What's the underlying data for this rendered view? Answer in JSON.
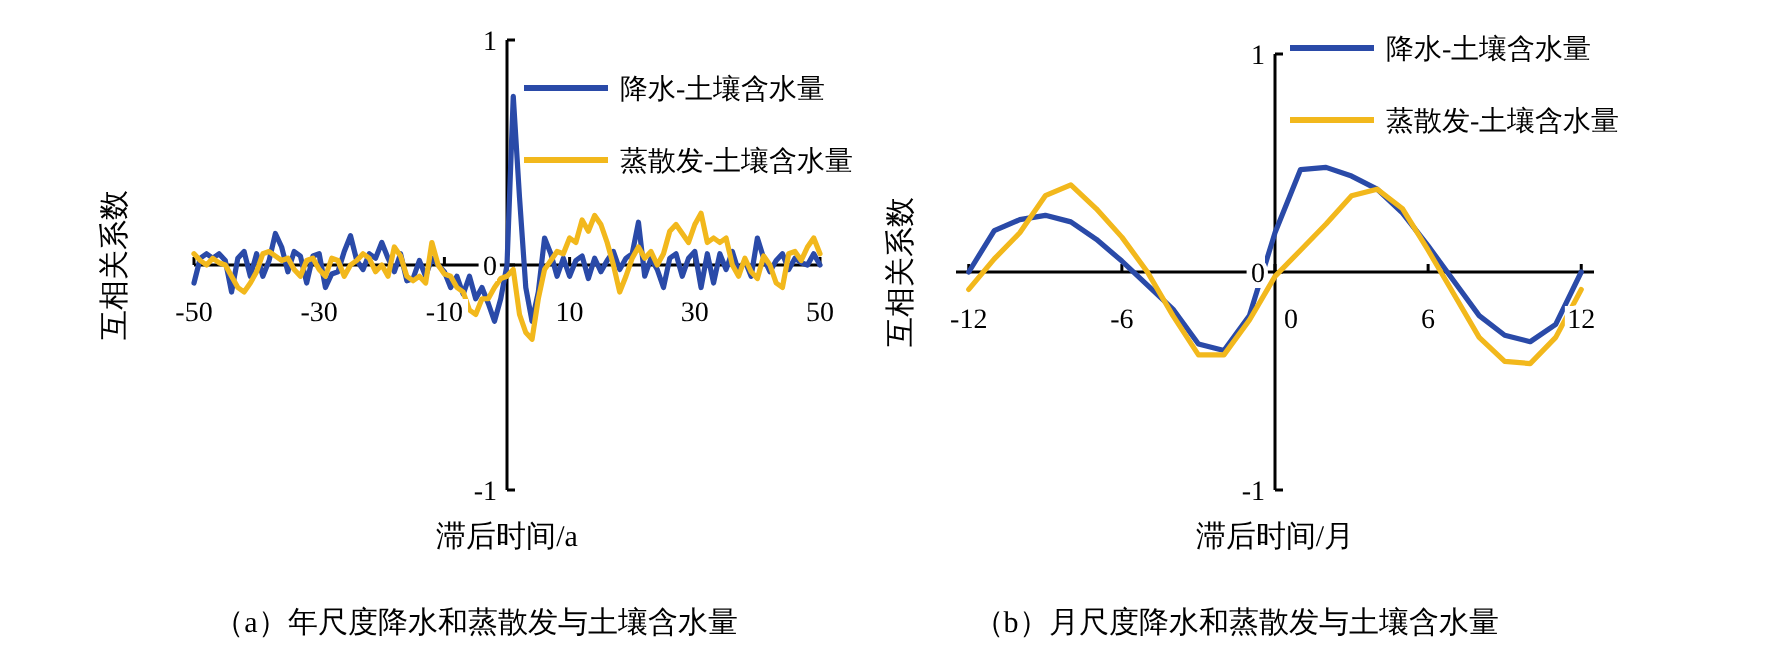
{
  "chart_data": [
    {
      "type": "line",
      "title": "（a）年尺度降水和蒸散发与土壤含水量",
      "xlabel": "滞后时间/a",
      "ylabel": "互相关系数",
      "x": [
        -50,
        -49,
        -48,
        -47,
        -46,
        -45,
        -44,
        -43,
        -42,
        -41,
        -40,
        -39,
        -38,
        -37,
        -36,
        -35,
        -34,
        -33,
        -32,
        -31,
        -30,
        -29,
        -28,
        -27,
        -26,
        -25,
        -24,
        -23,
        -22,
        -21,
        -20,
        -19,
        -18,
        -17,
        -16,
        -15,
        -14,
        -13,
        -12,
        -11,
        -10,
        -9,
        -8,
        -7,
        -6,
        -5,
        -4,
        -3,
        -2,
        -1,
        0,
        1,
        2,
        3,
        4,
        5,
        6,
        7,
        8,
        9,
        10,
        11,
        12,
        13,
        14,
        15,
        16,
        17,
        18,
        19,
        20,
        21,
        22,
        23,
        24,
        25,
        26,
        27,
        28,
        29,
        30,
        31,
        32,
        33,
        34,
        35,
        36,
        37,
        38,
        39,
        40,
        41,
        42,
        43,
        44,
        45,
        46,
        47,
        48,
        49,
        50
      ],
      "xlim": [
        -50,
        50
      ],
      "ylim": [
        -1,
        1
      ],
      "xticks": [
        -50,
        -30,
        -10,
        10,
        30,
        50
      ],
      "yticks": [
        -1,
        0,
        1
      ],
      "legend": "top right",
      "series": [
        {
          "name": "降水-土壤含水量",
          "color": "#2a4aa8",
          "values": [
            -0.08,
            0.03,
            0.05,
            0.03,
            0.05,
            0.02,
            -0.12,
            0.03,
            0.06,
            -0.05,
            0.05,
            -0.05,
            0.02,
            0.14,
            0.08,
            -0.03,
            0.06,
            0.04,
            -0.08,
            0.04,
            0.05,
            -0.1,
            -0.04,
            -0.03,
            0.06,
            0.13,
            0.02,
            -0.02,
            0.05,
            0.03,
            0.1,
            0.03,
            -0.03,
            0.05,
            -0.07,
            -0.06,
            0.02,
            -0.05,
            0.03,
            0.0,
            -0.03,
            -0.1,
            -0.05,
            -0.13,
            -0.05,
            -0.15,
            -0.1,
            -0.17,
            -0.25,
            -0.15,
            0.0,
            0.75,
            0.3,
            -0.1,
            -0.25,
            -0.12,
            0.12,
            0.05,
            -0.05,
            0.03,
            -0.05,
            0.02,
            0.04,
            -0.06,
            0.03,
            -0.03,
            0.02,
            0.06,
            -0.02,
            0.03,
            0.05,
            0.19,
            -0.05,
            0.03,
            -0.02,
            -0.1,
            0.03,
            0.05,
            -0.05,
            0.03,
            0.06,
            -0.1,
            0.05,
            -0.08,
            0.05,
            -0.02,
            0.06,
            -0.03,
            0.02,
            -0.05,
            0.12,
            0.03,
            -0.03,
            0.02,
            0.05,
            -0.02,
            0.03,
            0.01,
            0.0,
            0.05,
            0.0
          ]
        },
        {
          "name": "蒸散发-土壤含水量",
          "color": "#f2b81c",
          "values": [
            0.05,
            0.02,
            0.0,
            0.03,
            0.01,
            0.0,
            -0.05,
            -0.1,
            -0.12,
            -0.08,
            -0.03,
            0.05,
            0.06,
            0.04,
            0.02,
            0.03,
            -0.02,
            -0.05,
            0.02,
            0.03,
            -0.02,
            -0.05,
            0.03,
            0.02,
            -0.05,
            0.0,
            0.02,
            0.05,
            0.03,
            -0.03,
            0.0,
            -0.05,
            0.08,
            0.04,
            -0.05,
            -0.07,
            -0.05,
            -0.08,
            0.1,
            0.0,
            -0.04,
            -0.05,
            -0.1,
            -0.12,
            -0.2,
            -0.22,
            -0.15,
            -0.15,
            -0.1,
            -0.06,
            -0.05,
            -0.02,
            -0.22,
            -0.3,
            -0.33,
            -0.15,
            -0.02,
            0.02,
            0.06,
            0.05,
            0.12,
            0.1,
            0.2,
            0.15,
            0.22,
            0.18,
            0.1,
            0.0,
            -0.12,
            -0.05,
            0.03,
            0.08,
            0.03,
            0.06,
            0.0,
            0.05,
            0.15,
            0.18,
            0.14,
            0.1,
            0.18,
            0.23,
            0.1,
            0.12,
            0.1,
            0.12,
            0.0,
            -0.05,
            0.03,
            -0.03,
            -0.06,
            0.04,
            0.0,
            -0.08,
            -0.1,
            0.05,
            0.06,
            0.02,
            0.08,
            0.12,
            0.05
          ]
        }
      ]
    },
    {
      "type": "line",
      "title": "（b）月尺度降水和蒸散发与土壤含水量",
      "xlabel": "滞后时间/月",
      "ylabel": "互相关系数",
      "x": [
        -12,
        -11,
        -10,
        -9,
        -8,
        -7,
        -6,
        -5,
        -4,
        -3,
        -2,
        -1,
        0,
        1,
        2,
        3,
        4,
        5,
        6,
        7,
        8,
        9,
        10,
        11,
        12
      ],
      "xlim": [
        -12.5,
        12.5
      ],
      "ylim": [
        -1,
        1
      ],
      "xticks": [
        -12,
        -6,
        0,
        6,
        12
      ],
      "yticks": [
        -1,
        0,
        1
      ],
      "legend": "top right",
      "series": [
        {
          "name": "降水-土壤含水量",
          "color": "#2a4aa8",
          "values": [
            0,
            0.19,
            0.24,
            0.26,
            0.23,
            0.15,
            0.05,
            -0.06,
            -0.17,
            -0.33,
            -0.36,
            -0.2,
            0.18,
            0.47,
            0.48,
            0.44,
            0.38,
            0.27,
            0.12,
            -0.04,
            -0.2,
            -0.29,
            -0.32,
            -0.24,
            0
          ]
        },
        {
          "name": "蒸散发-土壤含水量",
          "color": "#f2b81c",
          "values": [
            -0.08,
            0.06,
            0.18,
            0.35,
            0.4,
            0.29,
            0.16,
            0.0,
            -0.2,
            -0.38,
            -0.38,
            -0.22,
            -0.02,
            0.1,
            0.22,
            0.35,
            0.38,
            0.29,
            0.1,
            -0.1,
            -0.3,
            -0.41,
            -0.42,
            -0.3,
            -0.08
          ]
        }
      ]
    }
  ]
}
